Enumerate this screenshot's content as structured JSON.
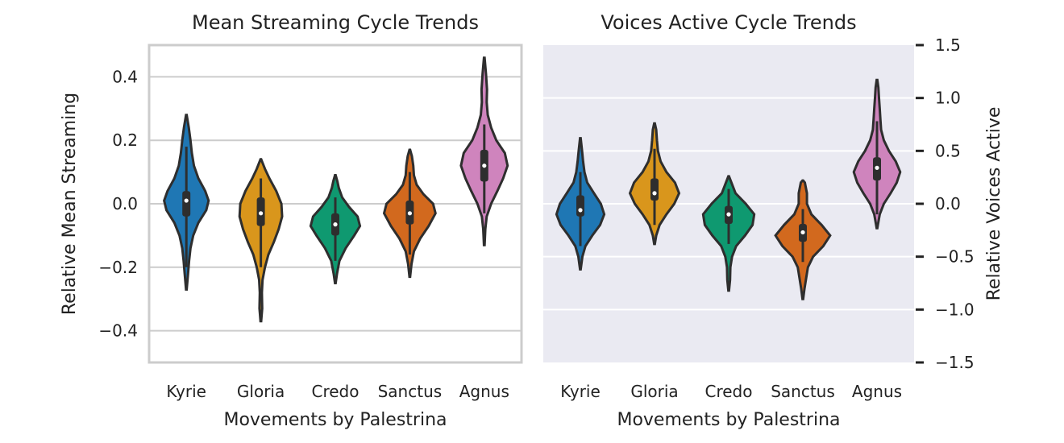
{
  "colors": {
    "Kyrie": "#1f77b4",
    "Gloria": "#d9961c",
    "Credo": "#0f9970",
    "Sanctus": "#d2691e",
    "Agnus": "#cf84bd",
    "left_bg": "#ffffff",
    "right_bg": "#eaeaf2"
  },
  "chart_data": [
    {
      "type": "violin",
      "title": "Mean Streaming Cycle Trends",
      "xlabel": "Movements by Palestrina",
      "ylabel": "Relative Mean Streaming",
      "ylim": [
        -0.5,
        0.5
      ],
      "yticks": [
        0.4,
        0.2,
        0.0,
        -0.2,
        -0.4
      ],
      "ytick_labels": [
        "0.4",
        "0.2",
        "0.0",
        "−0.2",
        "−0.4"
      ],
      "grid": true,
      "categories": [
        "Kyrie",
        "Gloria",
        "Credo",
        "Sanctus",
        "Agnus"
      ],
      "series": [
        {
          "name": "Kyrie",
          "min": -0.27,
          "max": 0.28,
          "q1": -0.04,
          "median": 0.01,
          "q3": 0.04,
          "whisker_low": -0.2,
          "whisker_high": 0.18,
          "density": [
            [
              -0.27,
              0.01
            ],
            [
              -0.22,
              0.05
            ],
            [
              -0.18,
              0.08
            ],
            [
              -0.14,
              0.12
            ],
            [
              -0.1,
              0.2
            ],
            [
              -0.06,
              0.35
            ],
            [
              -0.02,
              0.58
            ],
            [
              0.01,
              0.65
            ],
            [
              0.04,
              0.55
            ],
            [
              0.08,
              0.35
            ],
            [
              0.12,
              0.22
            ],
            [
              0.16,
              0.16
            ],
            [
              0.2,
              0.12
            ],
            [
              0.24,
              0.07
            ],
            [
              0.28,
              0.01
            ]
          ]
        },
        {
          "name": "Gloria",
          "min": -0.37,
          "max": 0.14,
          "q1": -0.07,
          "median": -0.03,
          "q3": 0.02,
          "whisker_low": -0.2,
          "whisker_high": 0.08,
          "density": [
            [
              -0.37,
              0.01
            ],
            [
              -0.33,
              0.04
            ],
            [
              -0.28,
              0.03
            ],
            [
              -0.24,
              0.05
            ],
            [
              -0.2,
              0.12
            ],
            [
              -0.16,
              0.22
            ],
            [
              -0.12,
              0.38
            ],
            [
              -0.08,
              0.52
            ],
            [
              -0.04,
              0.62
            ],
            [
              0.0,
              0.6
            ],
            [
              0.04,
              0.45
            ],
            [
              0.08,
              0.25
            ],
            [
              0.11,
              0.12
            ],
            [
              0.14,
              0.01
            ]
          ]
        },
        {
          "name": "Credo",
          "min": -0.25,
          "max": 0.09,
          "q1": -0.1,
          "median": -0.065,
          "q3": -0.03,
          "whisker_low": -0.18,
          "whisker_high": 0.02,
          "density": [
            [
              -0.25,
              0.01
            ],
            [
              -0.22,
              0.05
            ],
            [
              -0.18,
              0.12
            ],
            [
              -0.14,
              0.3
            ],
            [
              -0.1,
              0.55
            ],
            [
              -0.07,
              0.72
            ],
            [
              -0.04,
              0.65
            ],
            [
              -0.01,
              0.4
            ],
            [
              0.02,
              0.2
            ],
            [
              0.05,
              0.1
            ],
            [
              0.07,
              0.06
            ],
            [
              0.09,
              0.01
            ]
          ]
        },
        {
          "name": "Sanctus",
          "min": -0.23,
          "max": 0.17,
          "q1": -0.065,
          "median": -0.03,
          "q3": 0.01,
          "whisker_low": -0.16,
          "whisker_high": 0.1,
          "density": [
            [
              -0.23,
              0.01
            ],
            [
              -0.19,
              0.05
            ],
            [
              -0.15,
              0.12
            ],
            [
              -0.11,
              0.3
            ],
            [
              -0.07,
              0.55
            ],
            [
              -0.03,
              0.75
            ],
            [
              0.0,
              0.68
            ],
            [
              0.03,
              0.4
            ],
            [
              0.06,
              0.2
            ],
            [
              0.09,
              0.12
            ],
            [
              0.12,
              0.1
            ],
            [
              0.15,
              0.06
            ],
            [
              0.17,
              0.01
            ]
          ]
        },
        {
          "name": "Agnus",
          "min": -0.13,
          "max": 0.46,
          "q1": 0.07,
          "median": 0.12,
          "q3": 0.17,
          "whisker_low": -0.03,
          "whisker_high": 0.25,
          "density": [
            [
              -0.13,
              0.01
            ],
            [
              -0.08,
              0.03
            ],
            [
              -0.04,
              0.07
            ],
            [
              0.0,
              0.2
            ],
            [
              0.04,
              0.38
            ],
            [
              0.08,
              0.55
            ],
            [
              0.12,
              0.68
            ],
            [
              0.16,
              0.6
            ],
            [
              0.2,
              0.35
            ],
            [
              0.24,
              0.2
            ],
            [
              0.28,
              0.1
            ],
            [
              0.32,
              0.07
            ],
            [
              0.36,
              0.08
            ],
            [
              0.41,
              0.05
            ],
            [
              0.46,
              0.01
            ]
          ]
        }
      ]
    },
    {
      "type": "violin",
      "title": "Voices Active Cycle Trends",
      "xlabel": "Movements by Palestrina",
      "ylabel": "Relative Voices Active",
      "ylim": [
        -1.5,
        1.5
      ],
      "yticks": [
        1.5,
        1.0,
        0.5,
        0.0,
        -0.5,
        -1.0,
        -1.5
      ],
      "ytick_labels": [
        "1.5",
        "1.0",
        "0.5",
        "0.0",
        "−0.5",
        "−1.0",
        "−1.5"
      ],
      "grid": true,
      "categories": [
        "Kyrie",
        "Gloria",
        "Credo",
        "Sanctus",
        "Agnus"
      ],
      "series": [
        {
          "name": "Kyrie",
          "min": -0.62,
          "max": 0.62,
          "q1": -0.12,
          "median": -0.06,
          "q3": 0.08,
          "whisker_low": -0.4,
          "whisker_high": 0.3,
          "density": [
            [
              -0.62,
              0.01
            ],
            [
              -0.5,
              0.06
            ],
            [
              -0.4,
              0.15
            ],
            [
              -0.3,
              0.35
            ],
            [
              -0.2,
              0.58
            ],
            [
              -0.1,
              0.7
            ],
            [
              0.0,
              0.6
            ],
            [
              0.1,
              0.4
            ],
            [
              0.2,
              0.2
            ],
            [
              0.3,
              0.12
            ],
            [
              0.4,
              0.08
            ],
            [
              0.5,
              0.05
            ],
            [
              0.62,
              0.01
            ]
          ]
        },
        {
          "name": "Gloria",
          "min": -0.38,
          "max": 0.76,
          "q1": 0.03,
          "median": 0.1,
          "q3": 0.24,
          "whisker_low": -0.2,
          "whisker_high": 0.52,
          "density": [
            [
              -0.38,
              0.01
            ],
            [
              -0.3,
              0.05
            ],
            [
              -0.2,
              0.15
            ],
            [
              -0.1,
              0.35
            ],
            [
              0.0,
              0.58
            ],
            [
              0.1,
              0.72
            ],
            [
              0.2,
              0.6
            ],
            [
              0.3,
              0.35
            ],
            [
              0.4,
              0.18
            ],
            [
              0.5,
              0.1
            ],
            [
              0.6,
              0.07
            ],
            [
              0.7,
              0.05
            ],
            [
              0.76,
              0.01
            ]
          ]
        },
        {
          "name": "Credo",
          "min": -0.82,
          "max": 0.26,
          "q1": -0.19,
          "median": -0.1,
          "q3": -0.02,
          "whisker_low": -0.38,
          "whisker_high": 0.14,
          "density": [
            [
              -0.82,
              0.01
            ],
            [
              -0.72,
              0.04
            ],
            [
              -0.6,
              0.05
            ],
            [
              -0.5,
              0.1
            ],
            [
              -0.4,
              0.22
            ],
            [
              -0.3,
              0.48
            ],
            [
              -0.2,
              0.7
            ],
            [
              -0.1,
              0.75
            ],
            [
              0.0,
              0.5
            ],
            [
              0.1,
              0.2
            ],
            [
              0.2,
              0.08
            ],
            [
              0.26,
              0.01
            ]
          ]
        },
        {
          "name": "Sanctus",
          "min": -0.9,
          "max": 0.22,
          "q1": -0.36,
          "median": -0.27,
          "q3": -0.19,
          "whisker_low": -0.55,
          "whisker_high": -0.05,
          "density": [
            [
              -0.9,
              0.01
            ],
            [
              -0.8,
              0.05
            ],
            [
              -0.7,
              0.1
            ],
            [
              -0.6,
              0.15
            ],
            [
              -0.5,
              0.3
            ],
            [
              -0.4,
              0.6
            ],
            [
              -0.3,
              0.8
            ],
            [
              -0.2,
              0.55
            ],
            [
              -0.1,
              0.25
            ],
            [
              0.0,
              0.12
            ],
            [
              0.1,
              0.12
            ],
            [
              0.2,
              0.06
            ],
            [
              0.22,
              0.01
            ]
          ]
        },
        {
          "name": "Agnus",
          "min": -0.23,
          "max": 1.17,
          "q1": 0.22,
          "median": 0.34,
          "q3": 0.44,
          "whisker_low": -0.1,
          "whisker_high": 0.78,
          "density": [
            [
              -0.23,
              0.01
            ],
            [
              -0.1,
              0.08
            ],
            [
              0.0,
              0.2
            ],
            [
              0.1,
              0.4
            ],
            [
              0.2,
              0.58
            ],
            [
              0.3,
              0.68
            ],
            [
              0.4,
              0.55
            ],
            [
              0.5,
              0.35
            ],
            [
              0.6,
              0.2
            ],
            [
              0.7,
              0.12
            ],
            [
              0.8,
              0.1
            ],
            [
              0.9,
              0.08
            ],
            [
              1.0,
              0.06
            ],
            [
              1.1,
              0.04
            ],
            [
              1.17,
              0.01
            ]
          ]
        }
      ]
    }
  ]
}
